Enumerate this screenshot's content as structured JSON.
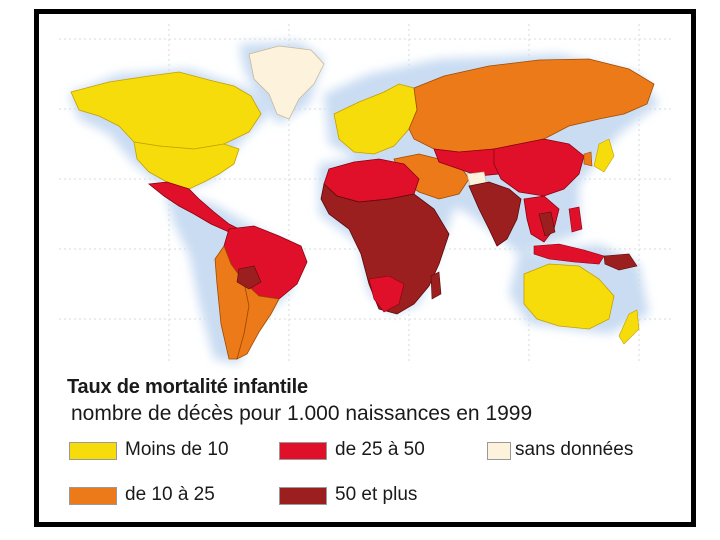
{
  "legend": {
    "title": "Taux de mortalité infantile",
    "subtitle": "nombre de décès pour 1.000 naissances en 1999",
    "items": [
      {
        "label": "Moins de 10",
        "color": "#f5dc0a"
      },
      {
        "label": "de 25 à 50",
        "color": "#e0102a"
      },
      {
        "label": "sans données",
        "color": "#fdf3dc"
      },
      {
        "label": "de 10 à 25",
        "color": "#ec7a18"
      },
      {
        "label": "50 et plus",
        "color": "#9c1f1f"
      }
    ]
  },
  "colors": {
    "ocean_glow": "#c9dcf2",
    "grid": "#d8d8d8",
    "frame": "#000000"
  }
}
